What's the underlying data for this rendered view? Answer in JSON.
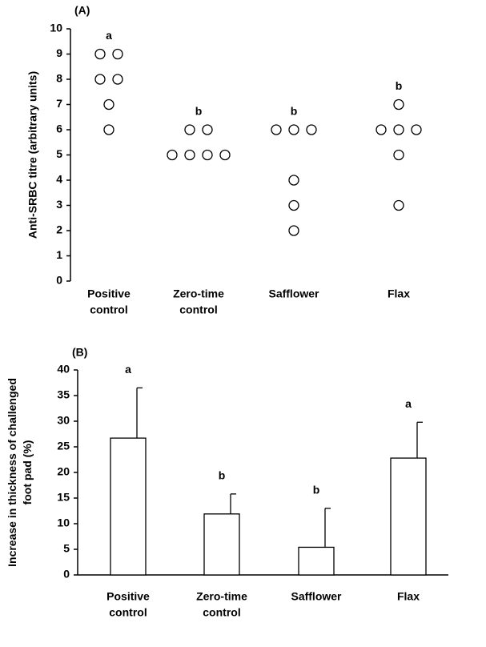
{
  "chart_data": [
    {
      "type": "strip",
      "panel_label": "(A)",
      "y_label": [
        "Anti-SRBC titre (arbitrary units)"
      ],
      "categories": [
        [
          "Positive",
          "control"
        ],
        [
          "Zero-time",
          "control"
        ],
        [
          "Safflower"
        ],
        [
          "Flax"
        ]
      ],
      "series": [
        {
          "name": null,
          "color": "#000000",
          "values": [
            [
              9,
              9,
              8,
              8,
              7,
              6
            ],
            [
              6,
              6,
              5,
              5,
              5,
              5
            ],
            [
              6,
              6,
              6,
              4,
              3,
              2
            ],
            [
              7,
              6,
              6,
              6,
              5,
              3
            ]
          ]
        }
      ],
      "group_labels": [
        "a",
        "b",
        "b",
        "b"
      ],
      "ylim": [
        0,
        10
      ],
      "yticks": [
        0,
        1,
        2,
        3,
        4,
        5,
        6,
        7,
        8,
        9,
        10
      ]
    },
    {
      "type": "bar",
      "panel_label": "(B)",
      "y_label": [
        "Increase in thickness of challenged",
        "foot pad (%)"
      ],
      "categories": [
        [
          "Positive",
          "control"
        ],
        [
          "Zero-time",
          "control"
        ],
        [
          "Safflower"
        ],
        [
          "Flax"
        ]
      ],
      "values": [
        26.7,
        11.9,
        5.4,
        22.8
      ],
      "errors": [
        9.8,
        3.9,
        7.6,
        7.0
      ],
      "color": "#ffffff",
      "group_labels": [
        "a",
        "b",
        "b",
        "a"
      ],
      "ylim": [
        0,
        40
      ],
      "yticks": [
        0,
        5,
        10,
        15,
        20,
        25,
        30,
        35,
        40
      ]
    }
  ]
}
